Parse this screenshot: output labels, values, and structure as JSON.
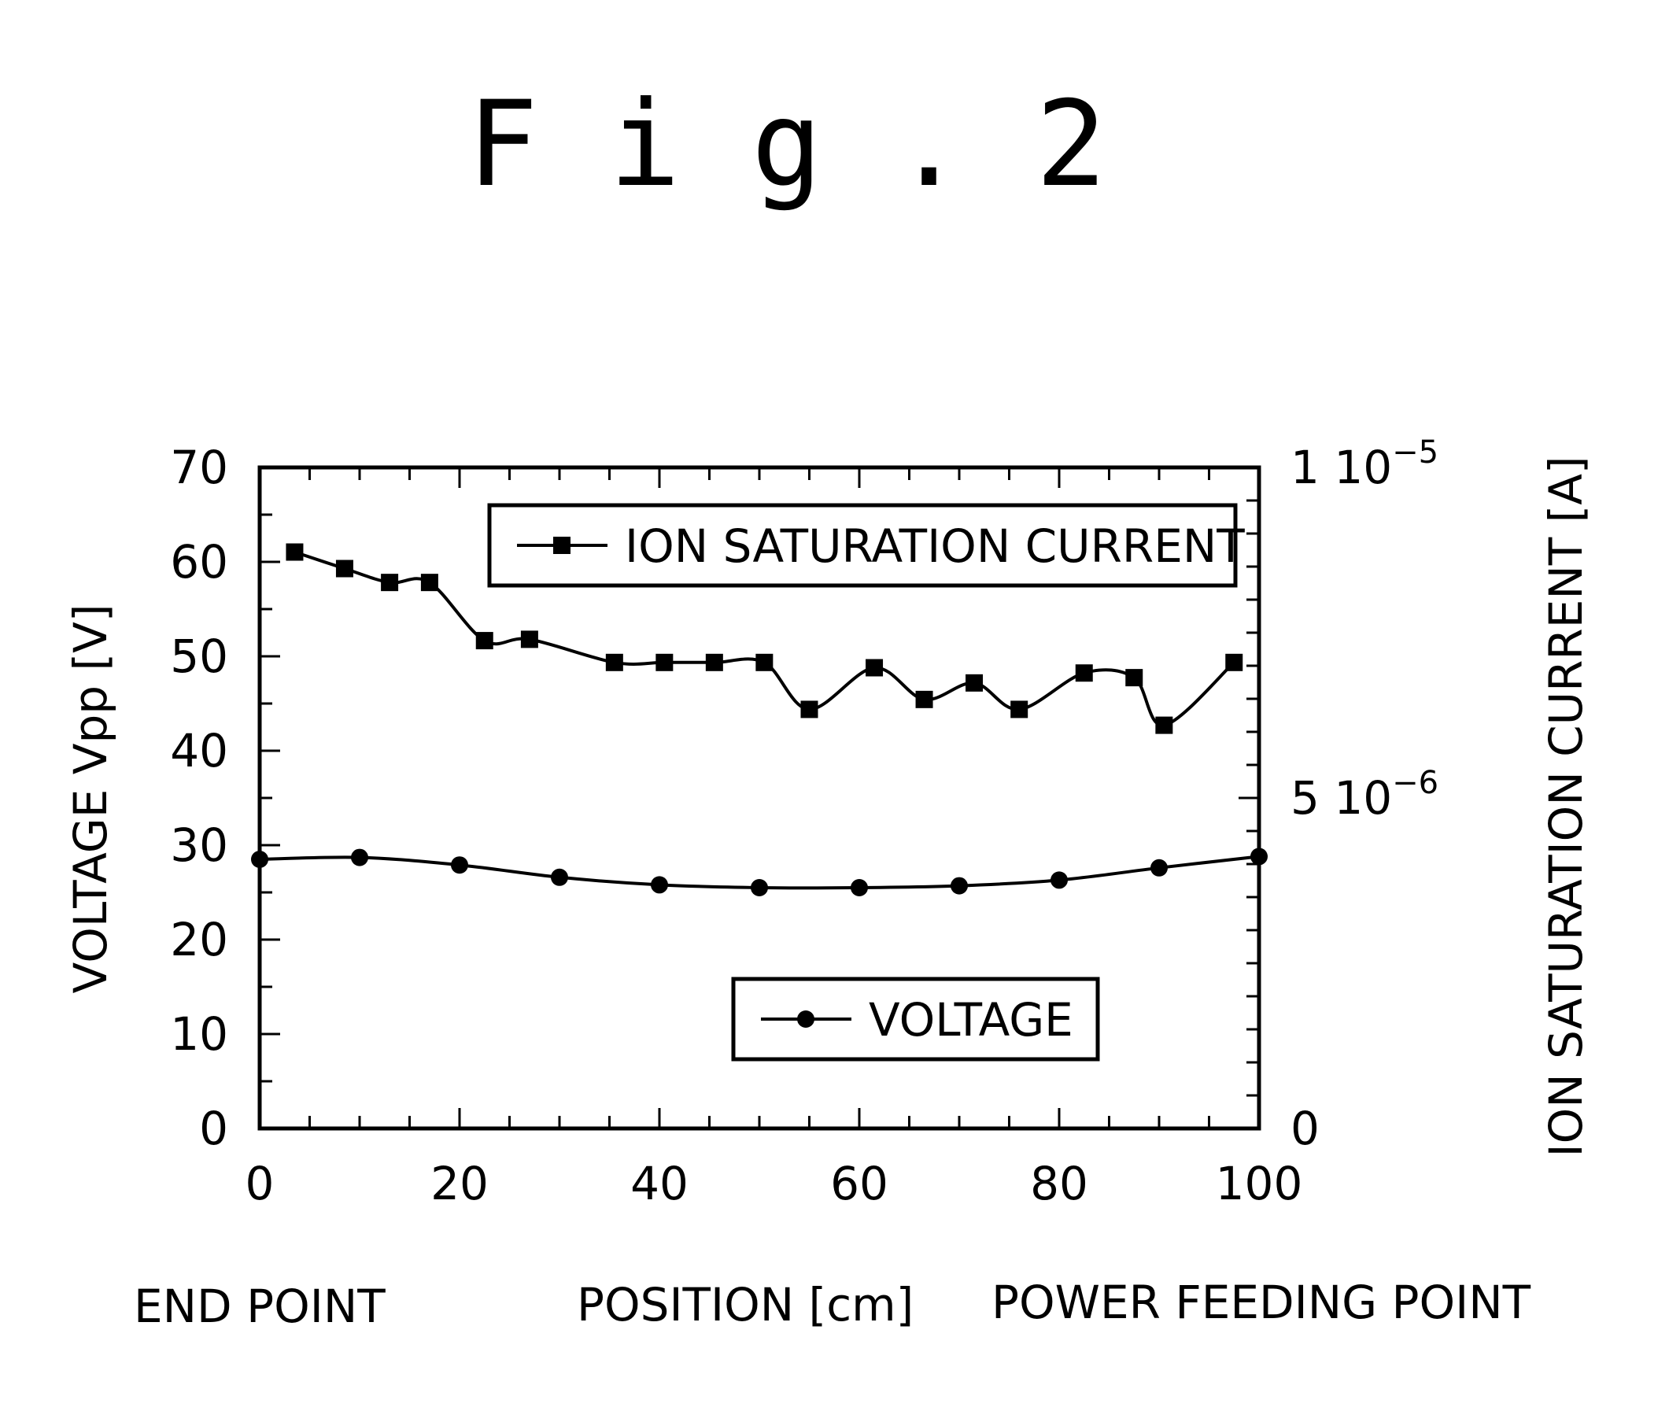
{
  "figure": {
    "title": "F i g . 2"
  },
  "chart_data": {
    "type": "line",
    "title": "",
    "xlabel": "POSITION [cm]",
    "x_left_note": "END POINT",
    "x_right_note": "POWER FEEDING POINT",
    "ylabel_left": "VOLTAGE Vpp [V]",
    "ylabel_right": "ION SATURATION CURRENT [A]",
    "xlim": [
      0,
      100
    ],
    "ylim_left": [
      0,
      70
    ],
    "ylim_right": [
      0,
      1e-05
    ],
    "x_ticks": [
      "0",
      "20",
      "40",
      "60",
      "80",
      "100"
    ],
    "y_left_ticks": [
      "0",
      "10",
      "20",
      "30",
      "40",
      "50",
      "60",
      "70"
    ],
    "y_right_ticks": [
      {
        "value": 0,
        "mantissa": "0",
        "exp": ""
      },
      {
        "value": 5e-06,
        "mantissa": "5",
        "exp": "−6"
      },
      {
        "value": 1e-05,
        "mantissa": "1",
        "exp": "−5"
      }
    ],
    "grid": false,
    "series": [
      {
        "name": "ION SATURATION CURRENT",
        "axis": "right",
        "marker": "square",
        "x": [
          3.5,
          8.5,
          13,
          17,
          22.5,
          27,
          35.5,
          40.5,
          45.5,
          50.5,
          55,
          61.5,
          66.5,
          71.5,
          76,
          82.5,
          87.5,
          90.5,
          97.5
        ],
        "y": [
          8.72e-06,
          8.47e-06,
          8.26e-06,
          8.26e-06,
          7.38e-06,
          7.4e-06,
          7.05e-06,
          7.05e-06,
          7.05e-06,
          7.05e-06,
          6.34e-06,
          6.97e-06,
          6.49e-06,
          6.74e-06,
          6.34e-06,
          6.89e-06,
          6.82e-06,
          6.1e-06,
          7.05e-06
        ]
      },
      {
        "name": "VOLTAGE",
        "axis": "left",
        "marker": "circle",
        "x": [
          0,
          10,
          20,
          30,
          40,
          50,
          60,
          70,
          80,
          90,
          100
        ],
        "y": [
          28.5,
          28.7,
          27.9,
          26.6,
          25.8,
          25.5,
          25.5,
          25.7,
          26.3,
          27.6,
          28.8
        ]
      }
    ],
    "legends": [
      {
        "series": "ION SATURATION CURRENT",
        "label": "ION SATURATION CURRENT",
        "placement": "top-right"
      },
      {
        "series": "VOLTAGE",
        "label": "VOLTAGE",
        "placement": "bottom-right"
      }
    ]
  }
}
